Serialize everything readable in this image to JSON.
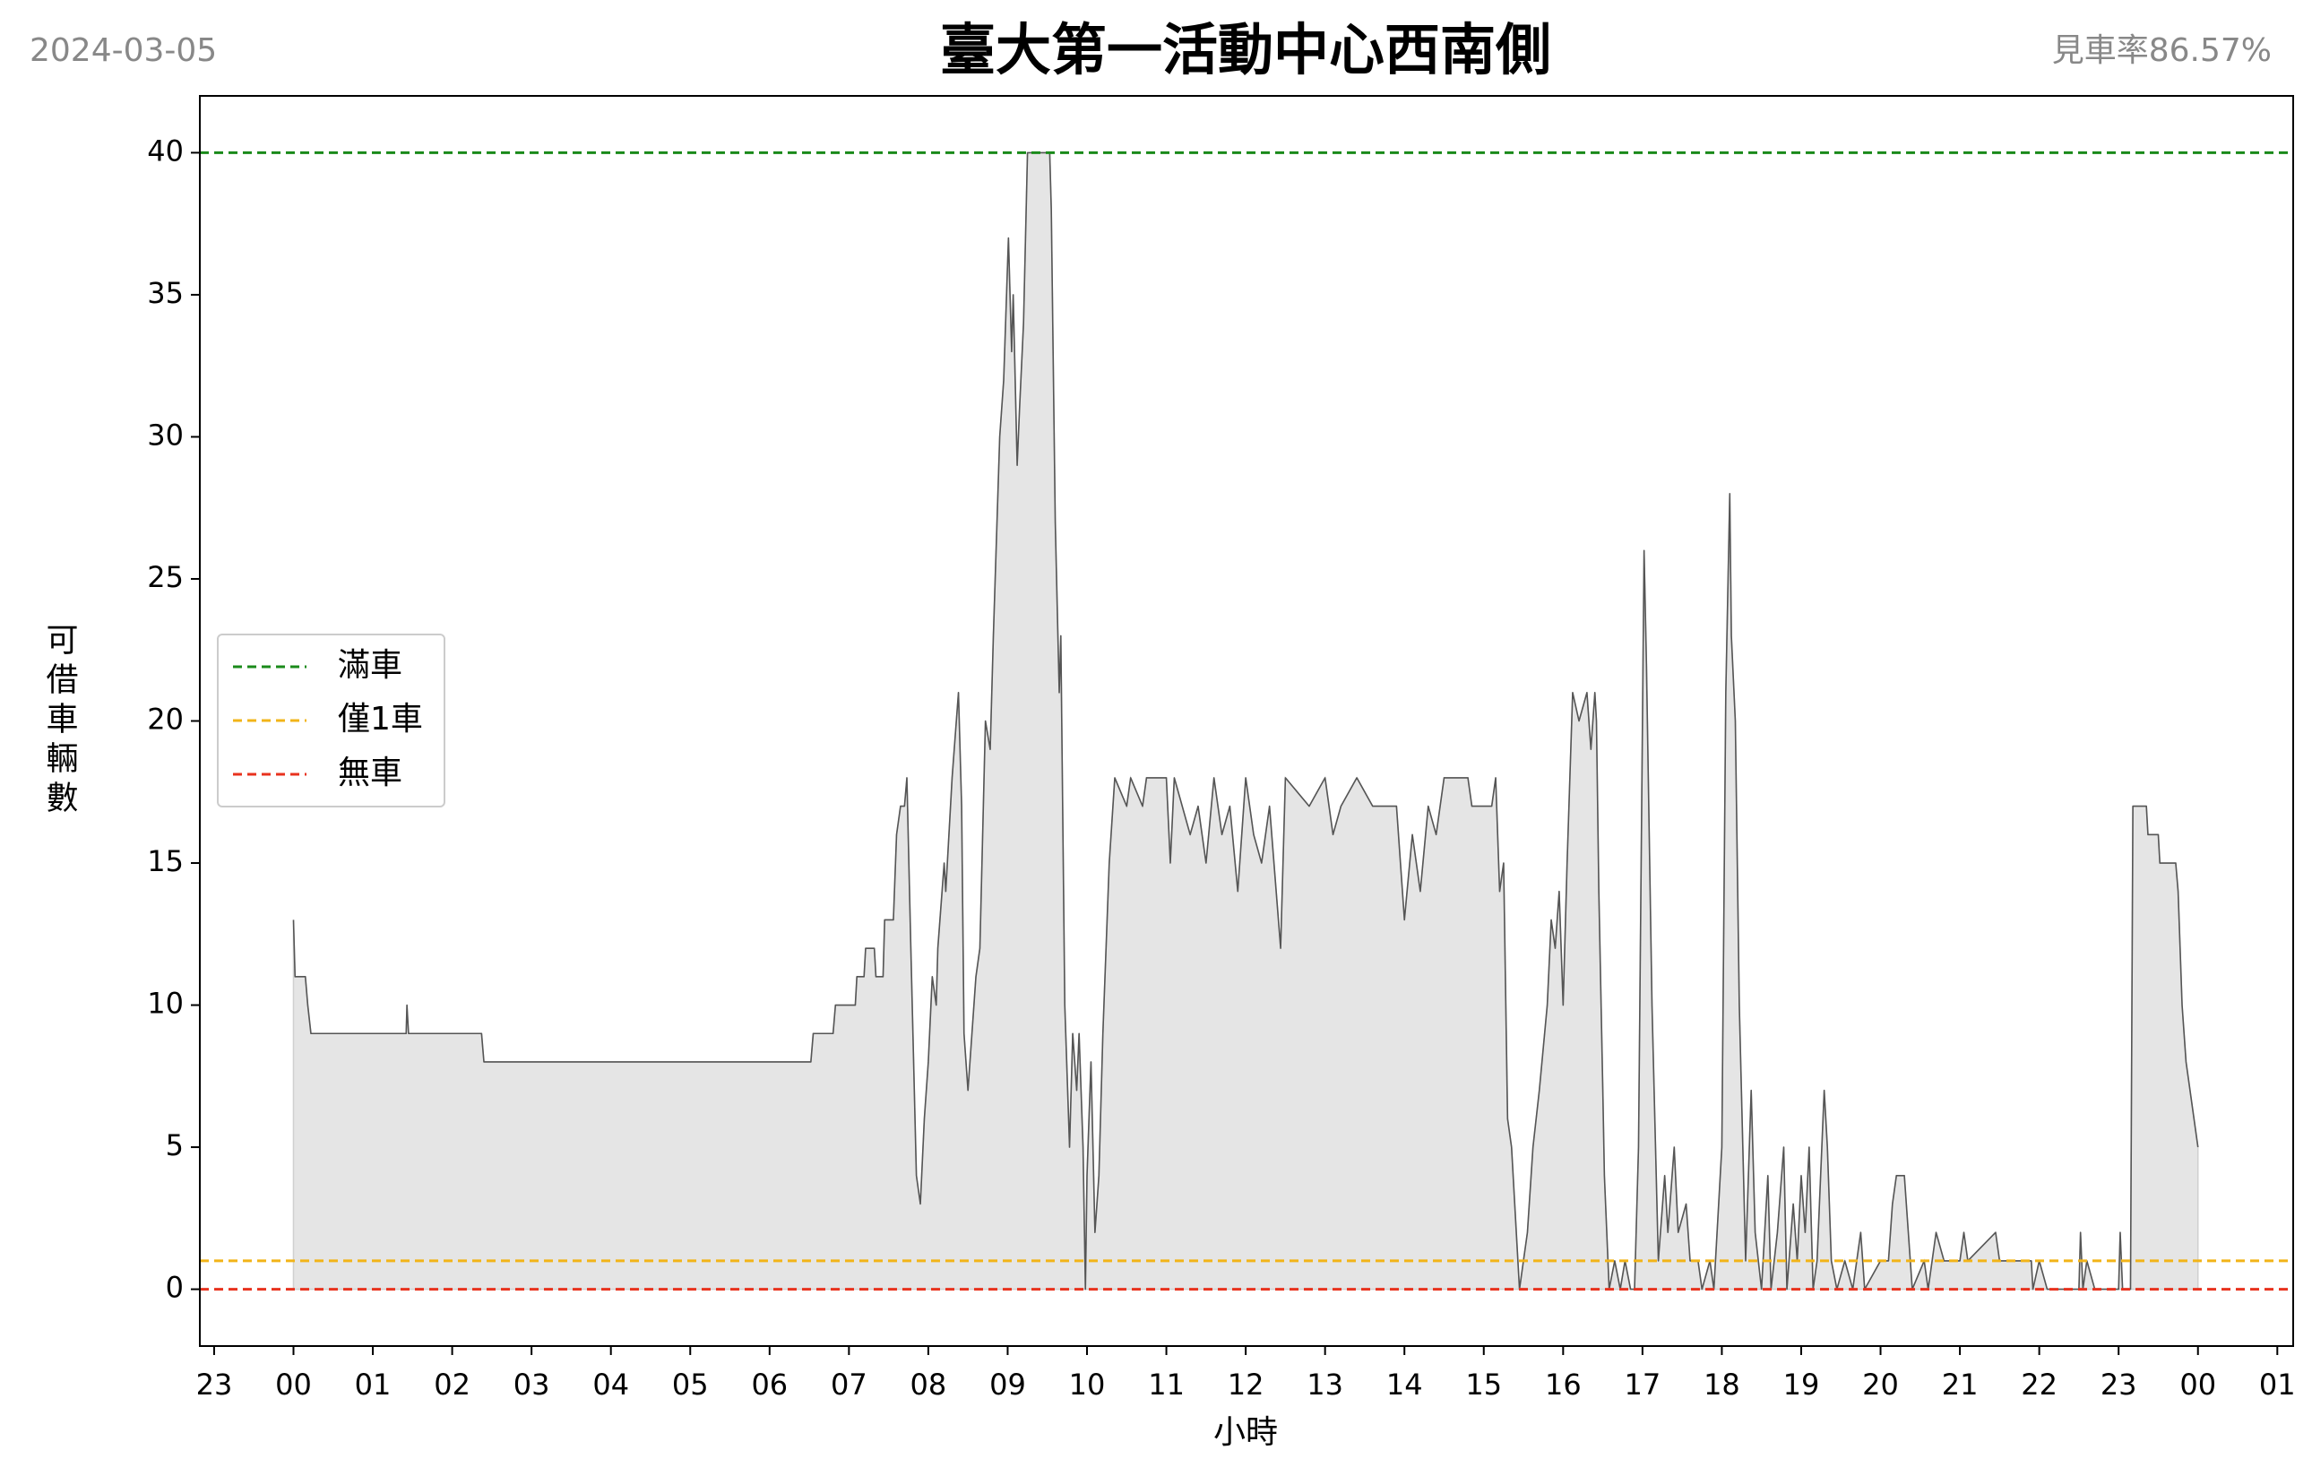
{
  "chart_data": {
    "type": "area",
    "date": "2024-03-05",
    "title": "臺大第一活動中心西南側",
    "rate": "見車率86.57%",
    "xlabel": "小時",
    "ylabel": "可借車輛數",
    "xlim": [
      -1.18,
      25.2
    ],
    "ylim": [
      -2,
      42
    ],
    "xticks": [
      {
        "value": -1,
        "label": "23"
      },
      {
        "value": 0,
        "label": "00"
      },
      {
        "value": 1,
        "label": "01"
      },
      {
        "value": 2,
        "label": "02"
      },
      {
        "value": 3,
        "label": "03"
      },
      {
        "value": 4,
        "label": "04"
      },
      {
        "value": 5,
        "label": "05"
      },
      {
        "value": 6,
        "label": "06"
      },
      {
        "value": 7,
        "label": "07"
      },
      {
        "value": 8,
        "label": "08"
      },
      {
        "value": 9,
        "label": "09"
      },
      {
        "value": 10,
        "label": "10"
      },
      {
        "value": 11,
        "label": "11"
      },
      {
        "value": 12,
        "label": "12"
      },
      {
        "value": 13,
        "label": "13"
      },
      {
        "value": 14,
        "label": "14"
      },
      {
        "value": 15,
        "label": "15"
      },
      {
        "value": 16,
        "label": "16"
      },
      {
        "value": 17,
        "label": "17"
      },
      {
        "value": 18,
        "label": "18"
      },
      {
        "value": 19,
        "label": "19"
      },
      {
        "value": 20,
        "label": "20"
      },
      {
        "value": 21,
        "label": "21"
      },
      {
        "value": 22,
        "label": "22"
      },
      {
        "value": 23,
        "label": "23"
      },
      {
        "value": 24,
        "label": "00"
      },
      {
        "value": 25,
        "label": "01"
      }
    ],
    "yticks": [
      0,
      5,
      10,
      15,
      20,
      25,
      30,
      35,
      40
    ],
    "x": [
      0,
      0.02,
      0.15,
      0.18,
      0.22,
      1.42,
      1.43,
      1.45,
      2.37,
      2.4,
      6.52,
      6.55,
      6.8,
      6.83,
      7.08,
      7.1,
      7.19,
      7.21,
      7.32,
      7.34,
      7.43,
      7.45,
      7.56,
      7.6,
      7.65,
      7.7,
      7.73,
      7.78,
      7.85,
      7.9,
      7.95,
      8.0,
      8.05,
      8.1,
      8.12,
      8.2,
      8.22,
      8.3,
      8.38,
      8.42,
      8.45,
      8.5,
      8.55,
      8.6,
      8.65,
      8.72,
      8.78,
      8.82,
      8.9,
      8.95,
      9.01,
      9.05,
      9.07,
      9.12,
      9.15,
      9.2,
      9.25,
      9.53,
      9.55,
      9.6,
      9.65,
      9.67,
      9.72,
      9.78,
      9.82,
      9.87,
      9.9,
      9.95,
      9.98,
      10.0,
      10.05,
      10.1,
      10.15,
      10.2,
      10.28,
      10.35,
      10.5,
      10.55,
      10.7,
      10.75,
      11.0,
      11.05,
      11.1,
      11.3,
      11.4,
      11.5,
      11.6,
      11.7,
      11.8,
      11.9,
      12.0,
      12.1,
      12.2,
      12.3,
      12.44,
      12.5,
      12.8,
      13.0,
      13.1,
      13.2,
      13.4,
      13.6,
      13.9,
      14.0,
      14.1,
      14.2,
      14.3,
      14.4,
      14.5,
      14.8,
      14.85,
      15.1,
      15.15,
      15.2,
      15.25,
      15.3,
      15.35,
      15.45,
      15.55,
      15.62,
      15.7,
      15.8,
      15.85,
      15.9,
      15.95,
      16.0,
      16.05,
      16.12,
      16.2,
      16.3,
      16.35,
      16.4,
      16.42,
      16.45,
      16.5,
      16.52,
      16.58,
      16.65,
      16.72,
      16.78,
      16.85,
      16.9,
      16.95,
      17.02,
      17.05,
      17.12,
      17.2,
      17.28,
      17.32,
      17.4,
      17.45,
      17.55,
      17.6,
      17.7,
      17.75,
      17.85,
      17.9,
      18.0,
      18.05,
      18.1,
      18.12,
      18.17,
      18.22,
      18.3,
      18.37,
      18.42,
      18.5,
      18.58,
      18.62,
      18.7,
      18.78,
      18.82,
      18.9,
      18.95,
      19.0,
      19.05,
      19.1,
      19.15,
      19.2,
      19.29,
      19.33,
      19.38,
      19.45,
      19.55,
      19.65,
      19.75,
      19.8,
      20.0,
      20.1,
      20.15,
      20.2,
      20.3,
      20.35,
      20.4,
      20.55,
      20.6,
      20.7,
      20.8,
      21.0,
      21.05,
      21.1,
      21.45,
      21.5,
      21.9,
      21.92,
      22.0,
      22.1,
      22.5,
      22.52,
      22.55,
      22.6,
      22.7,
      23.0,
      23.02,
      23.05,
      23.15,
      23.18,
      23.35,
      23.37,
      23.5,
      23.52,
      23.72,
      23.75,
      23.8,
      23.85,
      23.9,
      23.95,
      24.0
    ],
    "series": [
      {
        "color": "#555555",
        "fill": "#e5e5e5",
        "values": [
          13,
          11,
          11,
          10,
          9,
          9,
          10,
          9,
          9,
          8,
          8,
          9,
          9,
          10,
          10,
          11,
          11,
          12,
          12,
          11,
          11,
          13,
          13,
          16,
          17,
          17,
          18,
          12,
          4,
          3,
          6,
          8,
          11,
          10,
          12,
          15,
          14,
          18,
          21,
          17,
          9,
          7,
          9,
          11,
          12,
          20,
          19,
          23,
          30,
          32,
          37,
          33,
          35,
          29,
          31,
          34,
          40,
          40,
          38,
          27,
          21,
          23,
          10,
          5,
          9,
          7,
          9,
          5,
          0,
          4,
          8,
          2,
          4,
          9,
          15,
          18,
          17,
          18,
          17,
          18,
          18,
          15,
          18,
          16,
          17,
          15,
          18,
          16,
          17,
          14,
          18,
          16,
          15,
          17,
          12,
          18,
          17,
          18,
          16,
          17,
          18,
          17,
          17,
          13,
          16,
          14,
          17,
          16,
          18,
          18,
          17,
          17,
          18,
          14,
          15,
          6,
          5,
          0,
          2,
          5,
          7,
          10,
          13,
          12,
          14,
          10,
          15,
          21,
          20,
          21,
          19,
          21,
          20,
          14,
          7,
          4,
          0,
          1,
          0,
          1,
          0,
          0,
          5,
          26,
          22,
          10,
          1,
          4,
          2,
          5,
          2,
          3,
          1,
          1,
          0,
          1,
          0,
          5,
          21,
          28,
          23,
          20,
          10,
          1,
          7,
          2,
          0,
          4,
          0,
          2,
          5,
          0,
          3,
          1,
          4,
          2,
          5,
          0,
          1,
          7,
          5,
          1,
          0,
          1,
          0,
          2,
          0,
          1,
          1,
          3,
          4,
          4,
          2,
          0,
          1,
          0,
          2,
          1,
          1,
          2,
          1,
          2,
          1,
          1,
          0,
          1,
          0,
          0,
          2,
          0,
          1,
          0,
          0,
          2,
          0,
          0,
          17,
          17,
          16,
          16,
          15,
          15,
          14,
          10,
          8,
          7,
          6,
          5
        ]
      }
    ],
    "reference_lines": [
      {
        "name": "滿車",
        "value": 40,
        "color": "#1a8a1a"
      },
      {
        "name": "僅1車",
        "value": 1,
        "color": "#f2b418"
      },
      {
        "name": "無車",
        "value": 0,
        "color": "#e8321e"
      }
    ],
    "legend": "center left"
  }
}
